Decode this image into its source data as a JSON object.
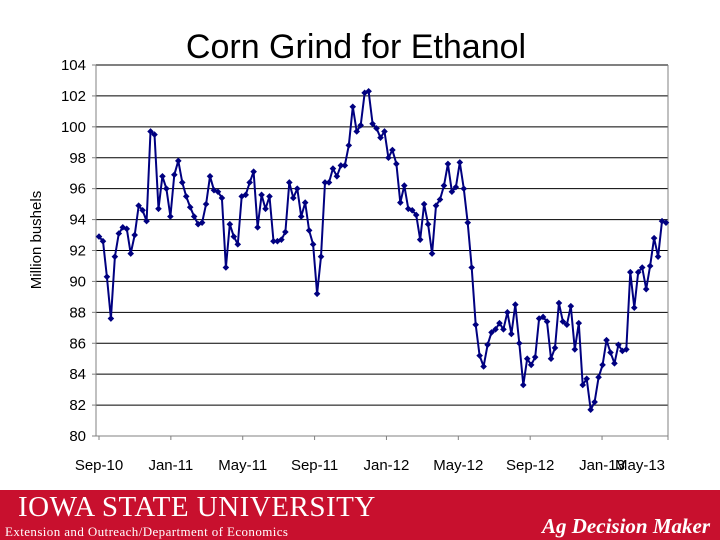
{
  "chart_data": {
    "type": "line",
    "title": "Corn Grind for Ethanol",
    "ylabel": "Million bushels",
    "xlabel": "",
    "ylim": [
      80,
      104
    ],
    "yticks": [
      80,
      82,
      84,
      86,
      88,
      90,
      92,
      94,
      96,
      98,
      100,
      102,
      104
    ],
    "xtick_labels": [
      "Sep-10",
      "Jan-11",
      "May-11",
      "Sep-11",
      "Jan-12",
      "May-12",
      "Sep-12",
      "Jan-13",
      "May-13"
    ],
    "grid": true,
    "legend": "none",
    "line_color": "#000080",
    "marker": "diamond",
    "series": [
      {
        "values": [
          92.9,
          92.6,
          90.3,
          87.6,
          91.6,
          93.1,
          93.5,
          93.4,
          91.8,
          93.0,
          94.9,
          94.6,
          93.9,
          99.7,
          99.5,
          94.7,
          96.8,
          96.0,
          94.2,
          96.9,
          97.8,
          96.4,
          95.5,
          94.8,
          94.2,
          93.7,
          93.8,
          95.0,
          96.8,
          95.9,
          95.8,
          95.4,
          90.9,
          93.7,
          92.9,
          92.4,
          95.5,
          95.6,
          96.4,
          97.1,
          93.5,
          95.6,
          94.7,
          95.5,
          92.6,
          92.6,
          92.7,
          93.2,
          96.4,
          95.4,
          96.0,
          94.2,
          95.1,
          93.3,
          92.4,
          89.2,
          91.6,
          96.4,
          96.4,
          97.3,
          96.8,
          97.5,
          97.5,
          98.8,
          101.3,
          99.7,
          100.1,
          102.2,
          102.3,
          100.2,
          99.9,
          99.3,
          99.7,
          98.0,
          98.5,
          97.6,
          95.1,
          96.2,
          94.7,
          94.6,
          94.3,
          92.7,
          95.0,
          93.7,
          91.8,
          94.9,
          95.3,
          96.2,
          97.6,
          95.8,
          96.1,
          97.7,
          96.0,
          93.8,
          90.9,
          87.2,
          85.2,
          84.5,
          85.9,
          86.7,
          86.9,
          87.3,
          86.9,
          88.0,
          86.6,
          88.5,
          86.0,
          83.3,
          85.0,
          84.6,
          85.1,
          87.6,
          87.7,
          87.4,
          85.0,
          85.7,
          88.6,
          87.4,
          87.2,
          88.4,
          85.6,
          87.3,
          83.3,
          83.7,
          81.7,
          82.2,
          83.8,
          84.6,
          86.2,
          85.4,
          84.7,
          85.9,
          85.5,
          85.6,
          90.6,
          88.3,
          90.6,
          90.9,
          89.5,
          91.0,
          92.8,
          91.6,
          93.9,
          93.8
        ]
      }
    ]
  },
  "footer": {
    "university": "IOWA STATE UNIVERSITY",
    "subtitle": "Extension and Outreach/Department of Economics",
    "program": "Ag Decision Maker"
  }
}
